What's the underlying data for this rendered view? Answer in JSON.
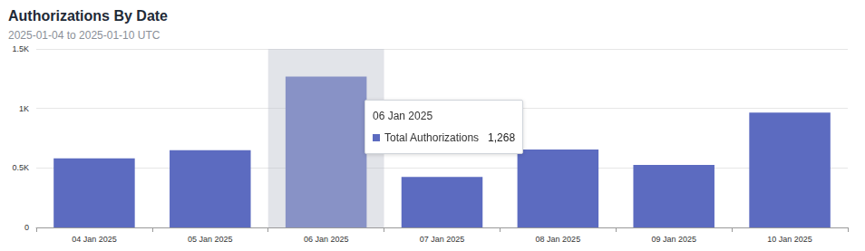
{
  "chart_data": {
    "type": "bar",
    "title": "Authorizations By Date",
    "subtitle": "2025-01-04 to 2025-01-10 UTC",
    "categories": [
      "04 Jan 2025",
      "05 Jan 2025",
      "06 Jan 2025",
      "07 Jan 2025",
      "08 Jan 2025",
      "09 Jan 2025",
      "10 Jan 2025"
    ],
    "series": [
      {
        "name": "Total Authorizations",
        "color": "#5c6bc0",
        "values": [
          580,
          650,
          1268,
          425,
          655,
          525,
          965
        ]
      }
    ],
    "ylim": [
      0,
      1500
    ],
    "yticks": [
      0,
      {
        "value": 500,
        "label": "0.5K"
      },
      {
        "value": 1000,
        "label": "1K"
      },
      {
        "value": 1500,
        "label": "1.5K"
      }
    ],
    "grid": true
  }
}
